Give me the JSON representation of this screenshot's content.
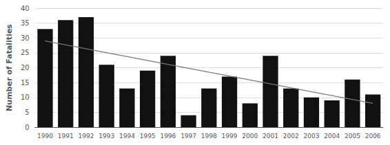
{
  "chart_data": {
    "type": "bar",
    "categories": [
      "1990",
      "1991",
      "1992",
      "1993",
      "1994",
      "1995",
      "1996",
      "1997",
      "1998",
      "1999",
      "2000",
      "2001",
      "2002",
      "2003",
      "2004",
      "2005",
      "2006"
    ],
    "values": [
      33,
      36,
      37,
      21,
      13,
      19,
      24,
      4,
      13,
      17,
      8,
      24,
      13,
      10,
      9,
      16,
      11
    ],
    "color": "#111111",
    "trend": {
      "values": [
        29.0,
        8.0
      ],
      "color": "#777777"
    },
    "ylabel": "Number of Fatalities",
    "ylim": [
      0,
      40
    ],
    "yticks": [
      0,
      5,
      10,
      15,
      20,
      25,
      30,
      35,
      40
    ],
    "grid": true
  }
}
